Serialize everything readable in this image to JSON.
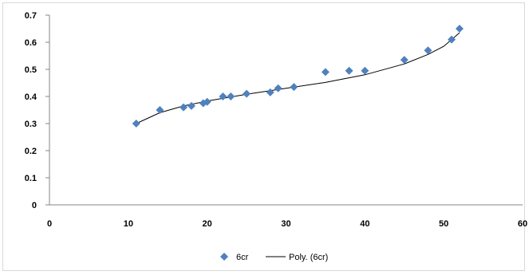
{
  "chart_data": {
    "type": "scatter",
    "title": "",
    "xlabel": "",
    "ylabel": "",
    "xlim": [
      0,
      60
    ],
    "ylim": [
      0,
      0.7
    ],
    "x_ticks": [
      0,
      10,
      20,
      30,
      40,
      50,
      60
    ],
    "y_ticks": [
      0,
      0.1,
      0.2,
      0.3,
      0.4,
      0.5,
      0.6,
      0.7
    ],
    "x_tick_labels": [
      "0",
      "10",
      "20",
      "30",
      "40",
      "50",
      "60"
    ],
    "y_tick_labels": [
      "0",
      "0.1",
      "0.2",
      "0.3",
      "0.4",
      "0.5",
      "0.6",
      "0.7"
    ],
    "grid": false,
    "legend_position": "bottom",
    "series": [
      {
        "name": "6cr",
        "marker": "diamond",
        "color": "#4f81bd",
        "points": [
          {
            "x": 11,
            "y": 0.3
          },
          {
            "x": 14,
            "y": 0.35
          },
          {
            "x": 17,
            "y": 0.36
          },
          {
            "x": 18,
            "y": 0.365
          },
          {
            "x": 19.5,
            "y": 0.375
          },
          {
            "x": 20,
            "y": 0.38
          },
          {
            "x": 22,
            "y": 0.4
          },
          {
            "x": 23,
            "y": 0.4
          },
          {
            "x": 25,
            "y": 0.41
          },
          {
            "x": 28,
            "y": 0.415
          },
          {
            "x": 29,
            "y": 0.43
          },
          {
            "x": 31,
            "y": 0.435
          },
          {
            "x": 35,
            "y": 0.49
          },
          {
            "x": 38,
            "y": 0.495
          },
          {
            "x": 40,
            "y": 0.495
          },
          {
            "x": 45,
            "y": 0.535
          },
          {
            "x": 48,
            "y": 0.57
          },
          {
            "x": 51,
            "y": 0.61
          },
          {
            "x": 52,
            "y": 0.65
          }
        ]
      },
      {
        "name": "Poly. (6cr)",
        "type": "trendline",
        "color": "#000000",
        "points": [
          {
            "x": 11,
            "y": 0.3
          },
          {
            "x": 14,
            "y": 0.34
          },
          {
            "x": 17,
            "y": 0.365
          },
          {
            "x": 20,
            "y": 0.383
          },
          {
            "x": 25,
            "y": 0.408
          },
          {
            "x": 30,
            "y": 0.43
          },
          {
            "x": 35,
            "y": 0.452
          },
          {
            "x": 40,
            "y": 0.48
          },
          {
            "x": 45,
            "y": 0.52
          },
          {
            "x": 48,
            "y": 0.555
          },
          {
            "x": 50,
            "y": 0.585
          },
          {
            "x": 52,
            "y": 0.635
          }
        ]
      }
    ]
  }
}
